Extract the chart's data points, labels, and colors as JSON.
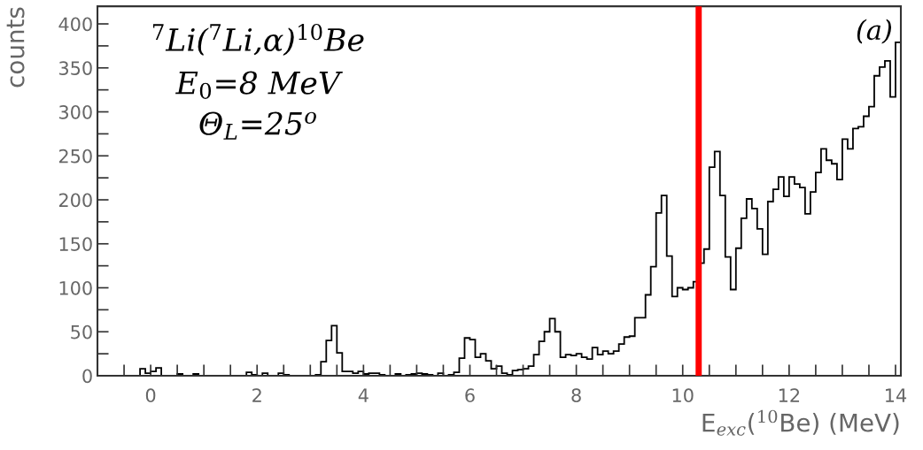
{
  "chart_data": {
    "type": "histogram",
    "xlabel": "E$_{exc}$($^{10}$Be) (MeV)",
    "ylabel": "counts",
    "annotations": [
      "$^{7}$Li($^{7}$Li,α)$^{10}$Be",
      "E$_{0}$=8 MeV",
      "Θ$_{L}$=25$^{o}$",
      "(a)"
    ],
    "color": "#000000",
    "bins": [
      -1.0,
      -0.9,
      -0.8,
      -0.7,
      -0.6,
      -0.5,
      -0.4,
      -0.3,
      -0.2,
      -0.1,
      0.0,
      0.1,
      0.2,
      0.3,
      0.4,
      0.5,
      0.6,
      0.7,
      0.8,
      0.9,
      1.0,
      1.1,
      1.2,
      1.3,
      1.4,
      1.5,
      1.6,
      1.7,
      1.8,
      1.9,
      2.0,
      2.1,
      2.2,
      2.3,
      2.4,
      2.5,
      2.6,
      2.7,
      2.8,
      2.9,
      3.0,
      3.1,
      3.2,
      3.3,
      3.4,
      3.5,
      3.6,
      3.7,
      3.8,
      3.9,
      4.0,
      4.1,
      4.2,
      4.3,
      4.4,
      4.5,
      4.6,
      4.7,
      4.8,
      4.9,
      5.0,
      5.1,
      5.2,
      5.3,
      5.4,
      5.5,
      5.6,
      5.7,
      5.8,
      5.9,
      6.0,
      6.1,
      6.2,
      6.3,
      6.4,
      6.5,
      6.6,
      6.7,
      6.8,
      6.9,
      7.0,
      7.1,
      7.2,
      7.3,
      7.4,
      7.5,
      7.6,
      7.7,
      7.8,
      7.9,
      8.0,
      8.1,
      8.2,
      8.3,
      8.4,
      8.5,
      8.6,
      8.7,
      8.8,
      8.9,
      9.0,
      9.1,
      9.2,
      9.3,
      9.4,
      9.5,
      9.6,
      9.7,
      9.8,
      9.9,
      10.0,
      10.1,
      10.2,
      10.3,
      10.4,
      10.5,
      10.6,
      10.7,
      10.8,
      10.9,
      11.0,
      11.1,
      11.2,
      11.3,
      11.4,
      11.5,
      11.6,
      11.7,
      11.8,
      11.9,
      12.0,
      12.1,
      12.2,
      12.3,
      12.4,
      12.5,
      12.6,
      12.7,
      12.8,
      12.9,
      13.0,
      13.1,
      13.2,
      13.3,
      13.4,
      13.5,
      13.6,
      13.7,
      13.8,
      13.9,
      14.0,
      14.1
    ],
    "values": [
      0,
      0,
      0,
      0,
      0,
      0,
      0,
      0,
      8,
      3,
      5,
      9,
      0,
      0,
      0,
      2,
      0,
      0,
      2,
      0,
      0,
      0,
      0,
      0,
      0,
      0,
      0,
      0,
      4,
      1,
      0,
      3,
      0,
      0,
      3,
      1,
      0,
      0,
      0,
      0,
      0,
      1,
      16,
      40,
      57,
      26,
      5,
      5,
      3,
      5,
      2,
      3,
      3,
      1,
      0,
      0,
      2,
      0,
      1,
      2,
      3,
      2,
      1,
      0,
      3,
      0,
      1,
      4,
      20,
      43,
      41,
      21,
      25,
      17,
      8,
      11,
      3,
      1,
      6,
      7,
      8,
      11,
      24,
      39,
      50,
      65,
      50,
      21,
      24,
      23,
      25,
      21,
      19,
      32,
      24,
      28,
      25,
      28,
      36,
      44,
      45,
      66,
      66,
      92,
      124,
      185,
      205,
      136,
      90,
      100,
      98,
      100,
      107,
      128,
      144,
      237,
      255,
      205,
      135,
      98,
      145,
      179,
      201,
      190,
      167,
      138,
      198,
      212,
      226,
      204,
      226,
      218,
      214,
      184,
      209,
      231,
      258,
      245,
      241,
      223,
      269,
      258,
      281,
      283,
      295,
      306,
      341,
      351,
      358,
      317,
      379
    ],
    "xlim": [
      -1.0,
      14.1
    ],
    "ylim": [
      0,
      420
    ],
    "xticks": [
      {
        "value": -1,
        "label": null
      },
      {
        "value": -0.5,
        "label": null
      },
      0,
      {
        "value": 0.5,
        "label": null
      },
      {
        "value": 1,
        "label": null
      },
      {
        "value": 1.5,
        "label": null
      },
      2,
      {
        "value": 2.5,
        "label": null
      },
      {
        "value": 3,
        "label": null
      },
      {
        "value": 3.5,
        "label": null
      },
      4,
      {
        "value": 4.5,
        "label": null
      },
      {
        "value": 5,
        "label": null
      },
      {
        "value": 5.5,
        "label": null
      },
      6,
      {
        "value": 6.5,
        "label": null
      },
      {
        "value": 7,
        "label": null
      },
      {
        "value": 7.5,
        "label": null
      },
      8,
      {
        "value": 8.5,
        "label": null
      },
      {
        "value": 9,
        "label": null
      },
      {
        "value": 9.5,
        "label": null
      },
      10,
      {
        "value": 10.5,
        "label": null
      },
      {
        "value": 11,
        "label": null
      },
      {
        "value": 11.5,
        "label": null
      },
      12,
      {
        "value": 12.5,
        "label": null
      },
      {
        "value": 13,
        "label": null
      },
      {
        "value": 13.5,
        "label": null
      },
      14
    ],
    "yticks": [
      0,
      {
        "value": 25,
        "label": null
      },
      50,
      {
        "value": 75,
        "label": null
      },
      100,
      {
        "value": 125,
        "label": null
      },
      150,
      {
        "value": 175,
        "label": null
      },
      200,
      {
        "value": 225,
        "label": null
      },
      250,
      {
        "value": 275,
        "label": null
      },
      300,
      {
        "value": 325,
        "label": null
      },
      350,
      {
        "value": 375,
        "label": null
      },
      400
    ],
    "ref_lines": [
      {
        "axis": "x",
        "value": 10.3,
        "color": "#ff0000"
      }
    ]
  }
}
